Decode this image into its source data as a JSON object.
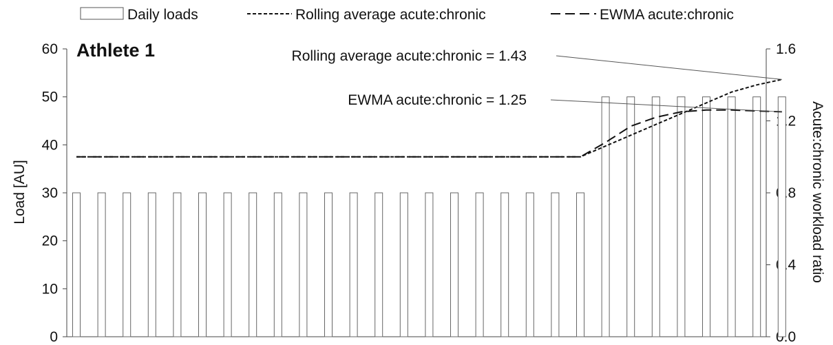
{
  "chart_data": {
    "type": "bar",
    "title": "Athlete 1",
    "ylabel": "Load [AU]",
    "y2label": "Acute:chronic workload ratio",
    "ylim": [
      0,
      60
    ],
    "y2lim": [
      0,
      1.6
    ],
    "yticks": [
      "0",
      "10",
      "20",
      "30",
      "40",
      "50",
      "60"
    ],
    "y2ticks": [
      "0.0",
      "0.4",
      "0.8",
      "1.2",
      "1.6"
    ],
    "legend": [
      "Daily loads",
      "Rolling average acute:chronic",
      "EWMA acute:chronic"
    ],
    "legend_position": "top",
    "series": [
      {
        "name": "Daily loads",
        "axis": "left",
        "values": [
          30,
          30,
          30,
          30,
          30,
          30,
          30,
          30,
          30,
          30,
          30,
          30,
          30,
          30,
          30,
          30,
          30,
          30,
          30,
          30,
          30,
          50,
          50,
          50,
          50,
          50,
          50,
          50,
          50
        ]
      },
      {
        "name": "Rolling average acute:chronic",
        "axis": "right",
        "values": [
          1,
          1,
          1,
          1,
          1,
          1,
          1,
          1,
          1,
          1,
          1,
          1,
          1,
          1,
          1,
          1,
          1,
          1,
          1,
          1,
          1,
          1.06,
          1.12,
          1.18,
          1.24,
          1.3,
          1.36,
          1.4,
          1.43
        ]
      },
      {
        "name": "EWMA acute:chronic",
        "axis": "right",
        "values": [
          1,
          1,
          1,
          1,
          1,
          1,
          1,
          1,
          1,
          1,
          1,
          1,
          1,
          1,
          1,
          1,
          1,
          1,
          1,
          1,
          1,
          1.08,
          1.17,
          1.22,
          1.25,
          1.26,
          1.26,
          1.255,
          1.25
        ]
      }
    ],
    "annotations": [
      {
        "text": "Rolling average acute:chronic = 1.43",
        "series": 1
      },
      {
        "text": "EWMA acute:chronic = 1.25",
        "series": 2
      }
    ]
  }
}
